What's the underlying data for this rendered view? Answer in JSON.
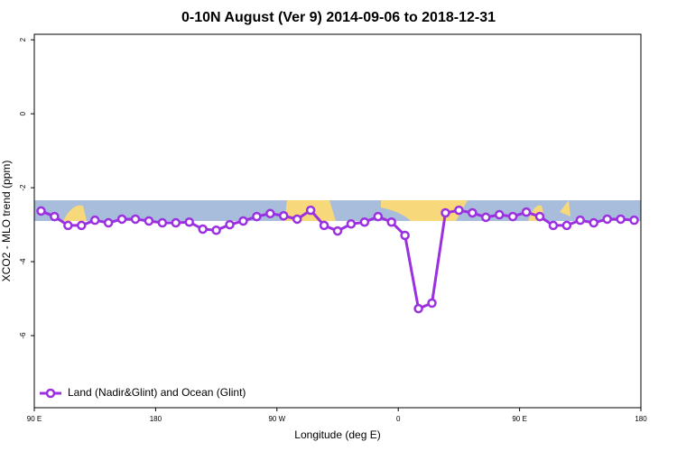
{
  "chart_data": {
    "type": "line",
    "title": "0-10N August (Ver 9)   2014-09-06 to 2018-12-31",
    "x_label": "Longitude (deg E)",
    "y_label": "XCO2 - MLO trend (ppm)",
    "x": [
      95,
      105,
      115,
      125,
      135,
      145,
      155,
      165,
      175,
      185,
      195,
      205,
      215,
      225,
      235,
      245,
      255,
      265,
      275,
      285,
      295,
      305,
      315,
      325,
      335,
      345,
      355,
      365,
      375,
      385,
      395,
      405,
      415,
      425,
      435,
      445,
      455,
      465,
      475,
      485,
      495,
      505,
      515,
      525,
      535
    ],
    "series": [
      {
        "name": "Land (Nadir&Glint) and Ocean (Glint)",
        "color": "#9b30e0",
        "values": [
          -2.63,
          -2.78,
          -3.02,
          -3.02,
          -2.88,
          -2.95,
          -2.85,
          -2.85,
          -2.9,
          -2.95,
          -2.95,
          -2.93,
          -3.12,
          -3.15,
          -3.0,
          -2.9,
          -2.78,
          -2.7,
          -2.76,
          -2.85,
          -2.61,
          -3.02,
          -3.17,
          -2.98,
          -2.93,
          -2.78,
          -2.93,
          -3.29,
          -5.27,
          -5.12,
          -2.68,
          -2.61,
          -2.68,
          -2.8,
          -2.73,
          -2.78,
          -2.66,
          -2.78,
          -3.02,
          -3.02,
          -2.88,
          -2.95,
          -2.85,
          -2.85,
          -2.88
        ]
      }
    ],
    "xlim": [
      90,
      540
    ],
    "xticks": [
      {
        "value": 90,
        "label": "90 E"
      },
      {
        "value": 180,
        "label": "180"
      },
      {
        "value": 270,
        "label": "90 W"
      },
      {
        "value": 360,
        "label": "0"
      },
      {
        "value": 450,
        "label": "90 E"
      },
      {
        "value": 540,
        "label": "180"
      }
    ],
    "ylim": [
      -7.95,
      2.15
    ],
    "yticks": [
      2,
      0,
      -2,
      -4,
      -6
    ],
    "legend": "bottom-left"
  }
}
